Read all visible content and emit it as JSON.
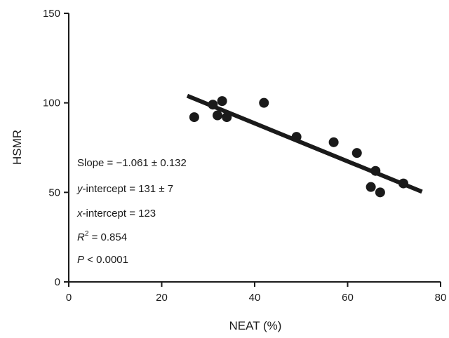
{
  "chart_data": {
    "type": "scatter",
    "xlabel": "NEAT (%)",
    "ylabel": "HSMR",
    "xlim": [
      0,
      80
    ],
    "ylim": [
      0,
      150
    ],
    "x_ticks": [
      0,
      20,
      40,
      60,
      80
    ],
    "y_ticks": [
      0,
      50,
      100,
      150
    ],
    "x_tick_labels": [
      "0",
      "20",
      "40",
      "60",
      "80"
    ],
    "y_tick_labels": [
      "0",
      "50",
      "100",
      "150"
    ],
    "grid": false,
    "legend": "none",
    "point_color": "#1a1a1a",
    "line_color": "#1a1a1a",
    "points": [
      {
        "x": 27,
        "y": 92
      },
      {
        "x": 31,
        "y": 99
      },
      {
        "x": 32,
        "y": 93
      },
      {
        "x": 33,
        "y": 101
      },
      {
        "x": 34,
        "y": 92
      },
      {
        "x": 42,
        "y": 100
      },
      {
        "x": 49,
        "y": 81
      },
      {
        "x": 57,
        "y": 78
      },
      {
        "x": 62,
        "y": 72
      },
      {
        "x": 65,
        "y": 53
      },
      {
        "x": 66,
        "y": 62
      },
      {
        "x": 67,
        "y": 50
      },
      {
        "x": 72,
        "y": 55
      }
    ],
    "regression_line": {
      "x_start": 25.5,
      "x_end": 76,
      "slope": -1.061,
      "intercept": 131
    },
    "annotations": {
      "slope": {
        "prefix": "Slope = −1.061 ± 0.132"
      },
      "y_intercept": {
        "italic": "y",
        "rest": "-intercept = 131 ± 7"
      },
      "x_intercept": {
        "italic": "x",
        "rest": "-intercept =  123"
      },
      "r_squared": {
        "italic": "R",
        "sup": "2",
        "rest": " = 0.854"
      },
      "p_value": {
        "italic": "P",
        "rest": " < 0.0001"
      }
    }
  }
}
